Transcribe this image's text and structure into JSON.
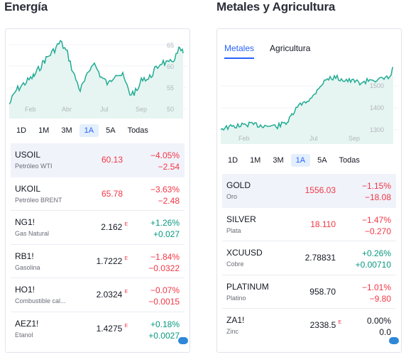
{
  "energy": {
    "title": "Energía",
    "chart": {
      "y_ticks": [
        "65",
        "60",
        "55",
        "50"
      ],
      "x_ticks": [
        "Feb",
        "Abr",
        "Jul",
        "Sep"
      ]
    },
    "ranges": [
      "1D",
      "1M",
      "3M",
      "1A",
      "5A",
      "Todas"
    ],
    "active_range": "1A",
    "rows": [
      {
        "symbol": "USOIL",
        "name": "Petróleo WTI",
        "price": "60.13",
        "flag": "",
        "change_pct": "−4.05%",
        "change_abs": "−2.54",
        "trend": "neg",
        "price_color": "neg"
      },
      {
        "symbol": "UKOIL",
        "name": "Petróleo BRENT",
        "price": "65.78",
        "flag": "",
        "change_pct": "−3.63%",
        "change_abs": "−2.48",
        "trend": "neg",
        "price_color": "neg"
      },
      {
        "symbol": "NG1!",
        "name": "Gas Natural",
        "price": "2.162",
        "flag": "E",
        "change_pct": "+1.26%",
        "change_abs": "+0.027",
        "trend": "pos",
        "price_color": "neutral"
      },
      {
        "symbol": "RB1!",
        "name": "Gasolina",
        "price": "1.7222",
        "flag": "E",
        "change_pct": "−1.84%",
        "change_abs": "−0.0322",
        "trend": "neg",
        "price_color": "neutral"
      },
      {
        "symbol": "HO1!",
        "name": "Combustible cal...",
        "price": "2.0324",
        "flag": "E",
        "change_pct": "−0.07%",
        "change_abs": "−0.0015",
        "trend": "neg",
        "price_color": "neutral"
      },
      {
        "symbol": "AEZ1!",
        "name": "Etanol",
        "price": "1.4275",
        "flag": "E",
        "change_pct": "+0.18%",
        "change_abs": "+0.0027",
        "trend": "pos",
        "price_color": "neutral"
      }
    ]
  },
  "metals": {
    "title": "Metales y Agricultura",
    "sub_tabs": [
      "Metales",
      "Agricultura"
    ],
    "active_sub_tab": "Metales",
    "chart": {
      "y_ticks": [
        "1500",
        "1400",
        "1300"
      ],
      "x_ticks": [
        "Feb",
        "Jul",
        "Sep"
      ]
    },
    "ranges": [
      "1D",
      "1M",
      "3M",
      "1A",
      "5A",
      "Todas"
    ],
    "active_range": "1A",
    "rows": [
      {
        "symbol": "GOLD",
        "name": "Oro",
        "price": "1556.03",
        "flag": "",
        "change_pct": "−1.15%",
        "change_abs": "−18.08",
        "trend": "neg",
        "price_color": "neg"
      },
      {
        "symbol": "SILVER",
        "name": "Plata",
        "price": "18.110",
        "flag": "",
        "change_pct": "−1.47%",
        "change_abs": "−0.270",
        "trend": "neg",
        "price_color": "neg"
      },
      {
        "symbol": "XCUUSD",
        "name": "Cobre",
        "price": "2.78831",
        "flag": "",
        "change_pct": "+0.26%",
        "change_abs": "+0.00710",
        "trend": "pos",
        "price_color": "neutral"
      },
      {
        "symbol": "PLATINUM",
        "name": "Platino",
        "price": "958.70",
        "flag": "",
        "change_pct": "−1.01%",
        "change_abs": "−9.80",
        "trend": "neg",
        "price_color": "neutral"
      },
      {
        "symbol": "ZA1!",
        "name": "Zinc",
        "price": "2338.5",
        "flag": "E",
        "change_pct": "0.00%",
        "change_abs": "0.0",
        "trend": "flat",
        "price_color": "neutral"
      }
    ]
  },
  "colors": {
    "line": "#22ab94",
    "area": "#e6f5f1",
    "negative": "#f23645",
    "positive": "#089981",
    "accent": "#2962ff"
  }
}
